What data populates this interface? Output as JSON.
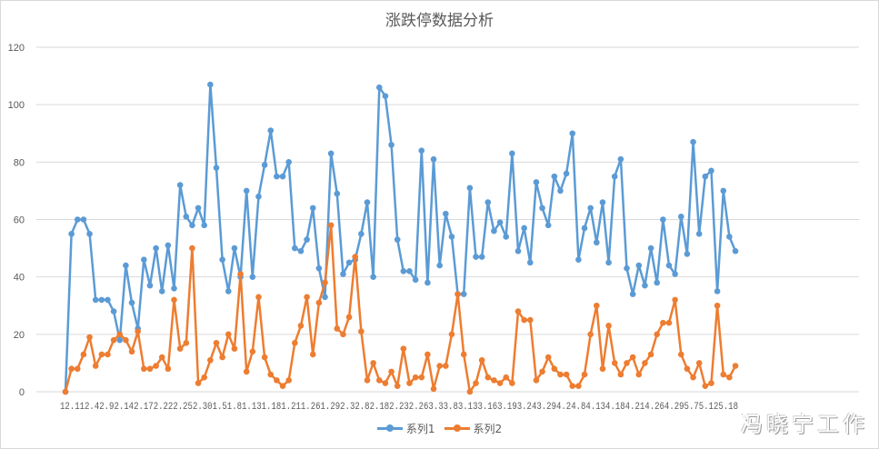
{
  "chart_data": {
    "type": "line",
    "title": "涨跌停数据分析",
    "xlabel": "",
    "ylabel": "",
    "ylim": [
      0,
      120
    ],
    "yticks": [
      0,
      20,
      40,
      60,
      80,
      100,
      120
    ],
    "grid": true,
    "legend_position": "bottom",
    "x_tick_labels_visible": [
      "12.1",
      "12.4",
      "12.9",
      "12.14",
      "12.17",
      "12.22",
      "12.25",
      "12.30",
      "1.5",
      "1.8",
      "1.13",
      "1.18",
      "1.21",
      "1.26",
      "1.29",
      "2.3",
      "2.8",
      "2.18",
      "2.23",
      "2.26",
      "3.3",
      "3.8",
      "3.13",
      "3.16",
      "3.19",
      "3.24",
      "3.29",
      "4.2",
      "4.8",
      "4.13",
      "4.18",
      "4.21",
      "4.26",
      "4.29",
      "5.7",
      "5.12",
      "5.18"
    ],
    "x_tick_labels_rendered": "12.112.42.92.142.172.222.252.301.51.81.131.181.211.261.292.32.82.182.232.263.33.83.133.163.193.243.294.24.84.134.184.214.264.295.75.125.18",
    "series": [
      {
        "name": "系列1",
        "color": "#5b9bd5",
        "values": [
          0,
          55,
          60,
          60,
          55,
          32,
          32,
          32,
          28,
          18,
          44,
          31,
          22,
          46,
          37,
          50,
          35,
          51,
          36,
          72,
          61,
          58,
          64,
          58,
          107,
          78,
          46,
          35,
          50,
          40,
          70,
          40,
          68,
          79,
          91,
          75,
          75,
          80,
          50,
          49,
          53,
          64,
          43,
          33,
          83,
          69,
          41,
          45,
          46,
          55,
          66,
          40,
          106,
          103,
          86,
          53,
          42,
          42,
          39,
          84,
          38,
          81,
          44,
          62,
          54,
          34,
          34,
          71,
          47,
          47,
          66,
          56,
          59,
          54,
          83,
          49,
          57,
          45,
          73,
          64,
          58,
          75,
          70,
          76,
          90,
          46,
          57,
          64,
          52,
          66,
          45,
          75,
          81,
          43,
          34,
          44,
          37,
          50,
          38,
          60,
          44,
          41,
          61,
          48,
          87,
          55,
          75,
          77,
          35,
          70,
          54,
          49
        ]
      },
      {
        "name": "系列2",
        "color": "#ed7d31",
        "values": [
          0,
          8,
          8,
          13,
          19,
          9,
          13,
          13,
          18,
          20,
          18,
          14,
          21,
          8,
          8,
          9,
          12,
          8,
          32,
          15,
          17,
          50,
          3,
          5,
          11,
          17,
          12,
          20,
          15,
          41,
          7,
          14,
          33,
          12,
          6,
          4,
          2,
          4,
          17,
          23,
          33,
          13,
          31,
          38,
          58,
          22,
          20,
          26,
          47,
          21,
          4,
          10,
          4,
          3,
          7,
          2,
          15,
          3,
          5,
          5,
          13,
          1,
          9,
          9,
          20,
          34,
          13,
          0,
          3,
          11,
          5,
          4,
          3,
          5,
          3,
          28,
          25,
          25,
          4,
          7,
          12,
          8,
          6,
          6,
          2,
          2,
          6,
          20,
          30,
          8,
          23,
          10,
          6,
          10,
          12,
          6,
          10,
          13,
          20,
          24,
          24,
          32,
          13,
          8,
          5,
          10,
          2,
          3,
          30,
          6,
          5,
          9
        ]
      }
    ]
  },
  "legend": {
    "items": [
      {
        "label": "系列1",
        "color": "#5b9bd5"
      },
      {
        "label": "系列2",
        "color": "#ed7d31"
      }
    ]
  },
  "watermark": "冯晓宁工作"
}
